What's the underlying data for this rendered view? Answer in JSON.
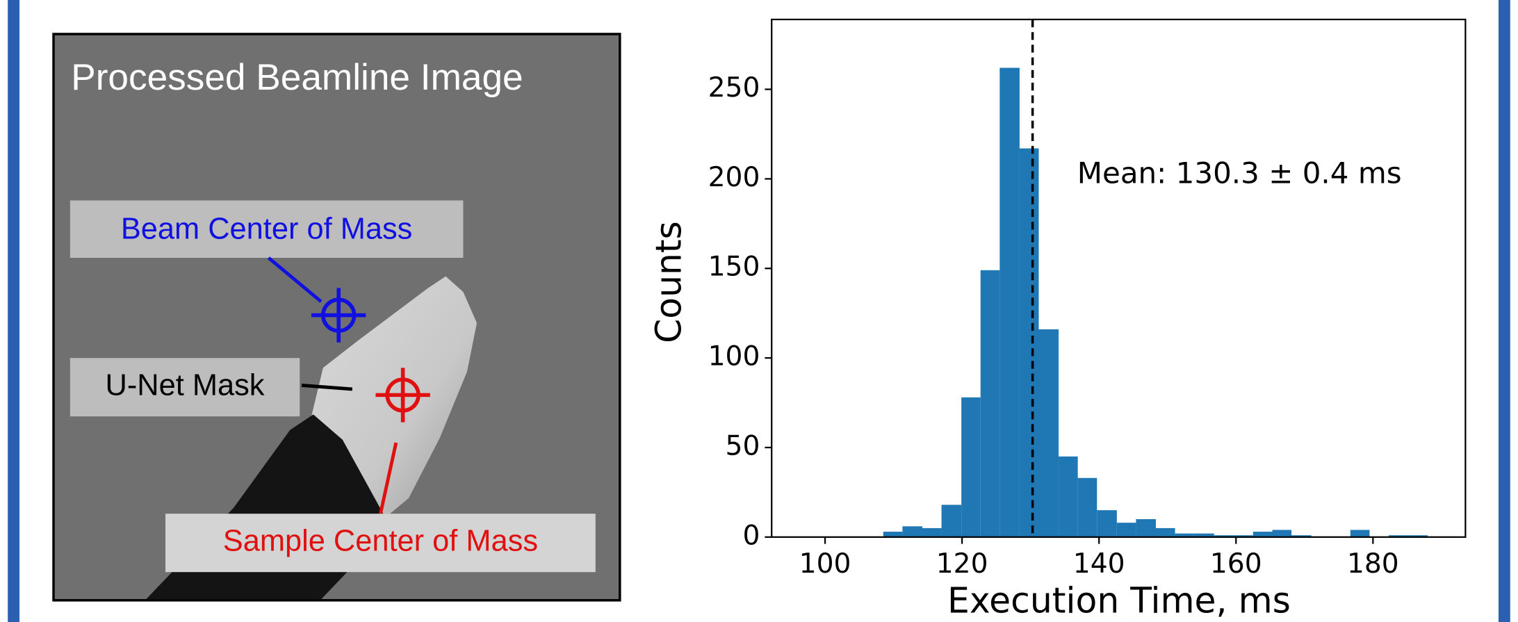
{
  "image_panel": {
    "title": "Processed Beamline Image",
    "labels": [
      "Beam Center of Mass",
      "U-Net Mask",
      "Sample Center of Mass"
    ]
  },
  "chart_data": {
    "type": "histogram",
    "xlabel": "Execution Time, ms",
    "ylabel": "Counts",
    "annotation": "Mean: 130.3 ± 0.4 ms",
    "mean_line": 130.3,
    "color": "#1f77b4",
    "bins": [
      108.5,
      111.3,
      114.2,
      117.0,
      119.9,
      122.7,
      125.5,
      128.4,
      131.2,
      134.1,
      136.9,
      139.7,
      142.6,
      145.4,
      148.3,
      151.1,
      153.9,
      156.8,
      159.6,
      162.5,
      165.3,
      168.1,
      171.0,
      173.8,
      176.7,
      179.5,
      182.3,
      185.2,
      188.0
    ],
    "values": [
      3,
      6,
      5,
      18,
      78,
      149,
      262,
      217,
      116,
      45,
      33,
      15,
      8,
      10,
      5,
      2,
      2,
      1,
      1,
      3,
      4,
      1,
      0,
      0,
      4,
      0,
      1,
      1
    ],
    "xlim": [
      92.2,
      193.5
    ],
    "ylim": [
      0,
      289
    ],
    "xticks": [
      100,
      120,
      140,
      160,
      180
    ],
    "yticks": [
      0,
      50,
      100,
      150,
      200,
      250
    ]
  }
}
